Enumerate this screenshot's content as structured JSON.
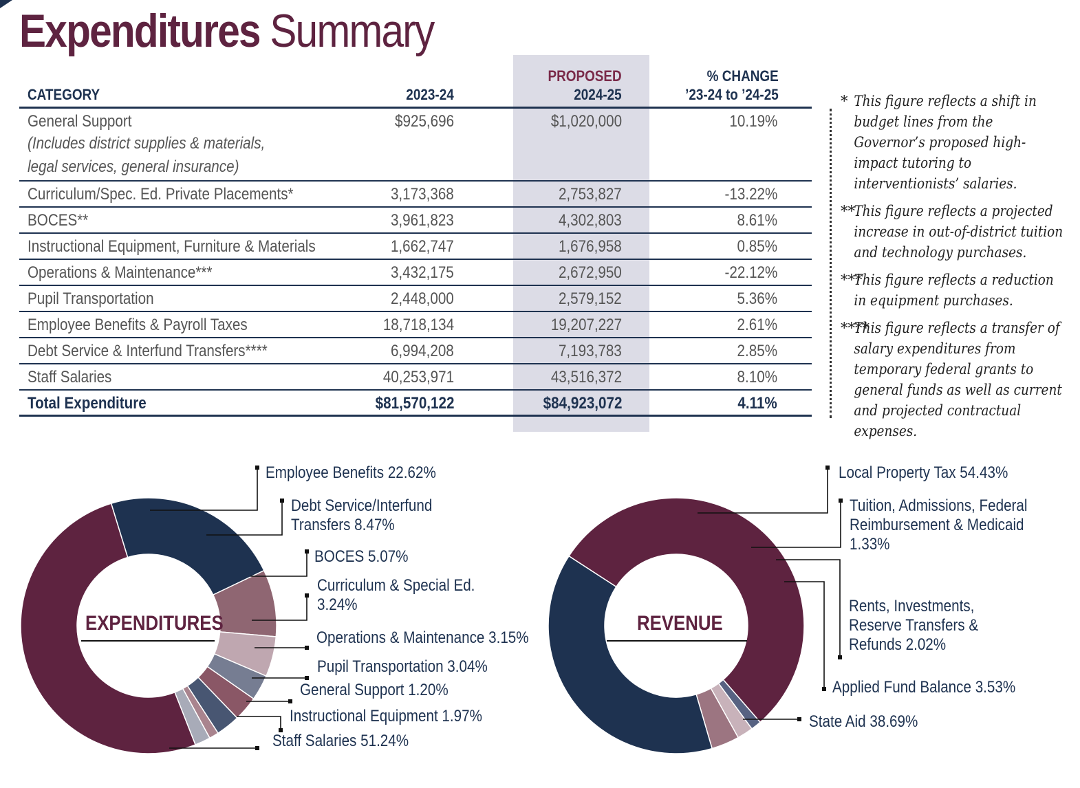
{
  "title": {
    "bold": "Expenditures",
    "light": "Summary"
  },
  "table": {
    "headers": {
      "category": "CATEGORY",
      "year1": "2023-24",
      "proposed_line1": "PROPOSED",
      "proposed_line2": "2024-25",
      "change_line1": "% CHANGE",
      "change_line2": "’23-24 to ’24-25"
    },
    "rows": [
      {
        "category": "General Support",
        "note1": "(Includes district supplies & materials,",
        "note2": "legal services, general insurance)",
        "y2023": "$925,696",
        "y2024": "$1,020,000",
        "change": "10.19%"
      },
      {
        "category": "Curriculum/Spec. Ed. Private Placements*",
        "y2023": "3,173,368",
        "y2024": "2,753,827",
        "change": "-13.22%"
      },
      {
        "category": "BOCES**",
        "y2023": "3,961,823",
        "y2024": "4,302,803",
        "change": "8.61%"
      },
      {
        "category": "Instructional Equipment, Furniture & Materials",
        "y2023": "1,662,747",
        "y2024": "1,676,958",
        "change": "0.85%"
      },
      {
        "category": "Operations & Maintenance***",
        "y2023": "3,432,175",
        "y2024": "2,672,950",
        "change": "-22.12%"
      },
      {
        "category": "Pupil Transportation",
        "y2023": "2,448,000",
        "y2024": "2,579,152",
        "change": "5.36%"
      },
      {
        "category": "Employee Benefits & Payroll Taxes",
        "y2023": "18,718,134",
        "y2024": "19,207,227",
        "change": "2.61%"
      },
      {
        "category": "Debt Service & Interfund Transfers****",
        "y2023": "6,994,208",
        "y2024": "7,193,783",
        "change": "2.85%"
      },
      {
        "category": "Staff Salaries",
        "y2023": "40,253,971",
        "y2024": "43,516,372",
        "change": "8.10%"
      }
    ],
    "total": {
      "category": "Total Expenditure",
      "y2023": "$81,570,122",
      "y2024": "$84,923,072",
      "change": "4.11%"
    }
  },
  "footnotes": [
    {
      "mark": "*",
      "text": "This figure reflects a shift in budget lines from the Governor’s proposed high-impact tutoring to interventionists’ salaries."
    },
    {
      "mark": "**",
      "text": "This figure reflects a projected increase in out-of-district tuition and technology purchases."
    },
    {
      "mark": "***",
      "text": "This figure reflects a reduction in equipment purchases."
    },
    {
      "mark": "****",
      "text": "This figure reflects a transfer of salary expenditures from temporary federal grants to general funds as well as current and projected contractual expenses."
    }
  ],
  "chart_data": [
    {
      "type": "pie",
      "title": "EXPENDITURES",
      "slices": [
        {
          "label": "Employee Benefits 22.62%",
          "lines": [
            "Employee Benefits 22.62%"
          ],
          "value": 22.62,
          "color": "#1e3250"
        },
        {
          "label": "Debt Service/Interfund Transfers 8.47%",
          "lines": [
            "Debt Service/Interfund",
            "Transfers 8.47%"
          ],
          "value": 8.47,
          "color": "#8f6672"
        },
        {
          "label": "BOCES 5.07%",
          "lines": [
            "BOCES 5.07%"
          ],
          "value": 5.07,
          "color": "#bfa7b0"
        },
        {
          "label": "Curriculum & Special Ed. 3.24%",
          "lines": [
            "Curriculum & Special Ed.",
            "3.24%"
          ],
          "value": 3.24,
          "color": "#767d92"
        },
        {
          "label": "Operations & Maintenance 3.15%",
          "lines": [
            "Operations & Maintenance 3.15%"
          ],
          "value": 3.15,
          "color": "#8a5766"
        },
        {
          "label": "Pupil Transportation 3.04%",
          "lines": [
            "Pupil Transportation 3.04%"
          ],
          "value": 3.04,
          "color": "#485672"
        },
        {
          "label": "General Support 1.20%",
          "lines": [
            "General Support 1.20%"
          ],
          "value": 1.2,
          "color": "#a9848e"
        },
        {
          "label": "Instructional Equipment 1.97%",
          "lines": [
            "Instructional Equipment 1.97%"
          ],
          "value": 1.97,
          "color": "#a8abb8"
        },
        {
          "label": "Staff Salaries 51.24%",
          "lines": [
            "Staff Salaries 51.24%"
          ],
          "value": 51.24,
          "color": "#5e2340"
        }
      ]
    },
    {
      "type": "pie",
      "title": "REVENUE",
      "slices": [
        {
          "label": "Local Property Tax 54.43%",
          "lines": [
            "Local Property Tax 54.43%"
          ],
          "value": 54.43,
          "color": "#5e2340"
        },
        {
          "label": "Tuition, Admissions, Federal Reimbursement & Medicaid 1.33%",
          "lines": [
            "Tuition, Admissions, Federal",
            "Reimbursement & Medicaid",
            "1.33%"
          ],
          "value": 1.33,
          "color": "#576282"
        },
        {
          "label": "Rents, Investments, Reserve Transfers & Refunds 2.02%",
          "lines": [
            "Rents, Investments,",
            "Reserve Transfers &",
            "Refunds 2.02%"
          ],
          "value": 2.02,
          "color": "#c8b2ba"
        },
        {
          "label": "Applied Fund Balance 3.53%",
          "lines": [
            "Applied Fund Balance 3.53%"
          ],
          "value": 3.53,
          "color": "#9c7581"
        },
        {
          "label": "State Aid 38.69%",
          "lines": [
            "State Aid 38.69%"
          ],
          "value": 38.69,
          "color": "#1e3250"
        }
      ]
    }
  ]
}
